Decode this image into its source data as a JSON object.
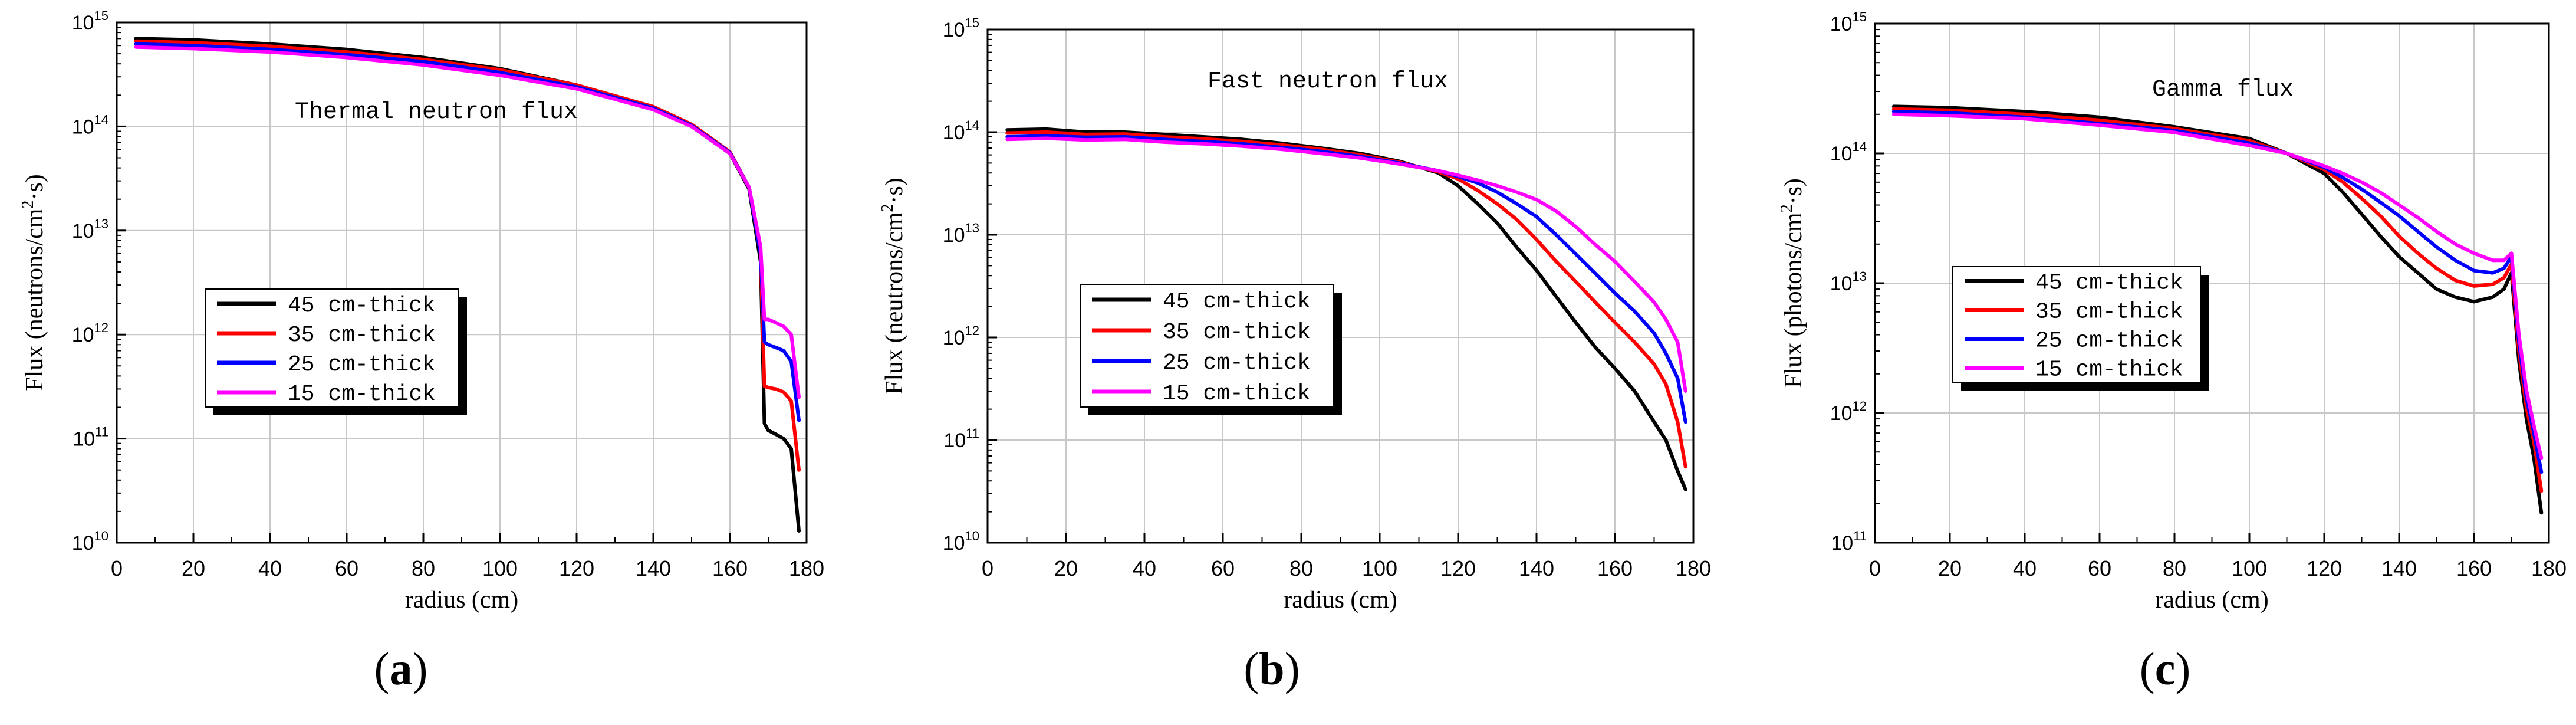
{
  "chart_data": [
    {
      "type": "line",
      "panel_label": "a",
      "title": "Thermal neutron flux",
      "xlabel": "radius (cm)",
      "ylabel_prefix": "Flux (neutrons/cm",
      "ylabel_sup": "2",
      "ylabel_suffix": "·s)",
      "xlim": [
        0,
        180
      ],
      "ylim_exp": [
        10,
        15
      ],
      "xticks": [
        0,
        20,
        40,
        60,
        80,
        100,
        120,
        140,
        160,
        180
      ],
      "ytick_exps": [
        10,
        11,
        12,
        13,
        14,
        15
      ],
      "legend": [
        "45 cm-thick",
        "35 cm-thick",
        "25 cm-thick",
        "15 cm-thick"
      ],
      "series": [
        {
          "name": "45 cm-thick",
          "color": "#000000",
          "x": [
            5,
            20,
            40,
            60,
            80,
            100,
            120,
            140,
            150,
            160,
            165,
            168,
            169,
            170,
            172,
            174,
            176,
            178
          ],
          "y": [
            700000000000000.0,
            680000000000000.0,
            620000000000000.0,
            550000000000000.0,
            460000000000000.0,
            360000000000000.0,
            250000000000000.0,
            150000000000000.0,
            100000000000000.0,
            55000000000000.0,
            25000000000000.0,
            5000000000000.0,
            140000000000.0,
            120000000000.0,
            110000000000.0,
            100000000000.0,
            80000000000.0,
            13000000000.0
          ]
        },
        {
          "name": "35 cm-thick",
          "color": "#ff0000",
          "x": [
            5,
            20,
            40,
            60,
            80,
            100,
            120,
            140,
            150,
            160,
            165,
            168,
            169,
            170,
            172,
            174,
            176,
            178
          ],
          "y": [
            660000000000000.0,
            640000000000000.0,
            590000000000000.0,
            520000000000000.0,
            440000000000000.0,
            350000000000000.0,
            250000000000000.0,
            155000000000000.0,
            105000000000000.0,
            57000000000000.0,
            26000000000000.0,
            6000000000000.0,
            320000000000.0,
            310000000000.0,
            300000000000.0,
            280000000000.0,
            230000000000.0,
            50000000000.0
          ]
        },
        {
          "name": "25 cm-thick",
          "color": "#0000ff",
          "x": [
            5,
            20,
            40,
            60,
            80,
            100,
            120,
            140,
            150,
            160,
            165,
            168,
            169,
            170,
            172,
            174,
            176,
            178
          ],
          "y": [
            620000000000000.0,
            600000000000000.0,
            550000000000000.0,
            490000000000000.0,
            420000000000000.0,
            330000000000000.0,
            240000000000000.0,
            150000000000000.0,
            102000000000000.0,
            56000000000000.0,
            26000000000000.0,
            6000000000000.0,
            850000000000.0,
            800000000000.0,
            750000000000.0,
            700000000000.0,
            550000000000.0,
            150000000000.0
          ]
        },
        {
          "name": "15 cm-thick",
          "color": "#ff00ff",
          "x": [
            5,
            20,
            40,
            60,
            80,
            100,
            120,
            140,
            150,
            160,
            165,
            168,
            169,
            170,
            172,
            174,
            176,
            178
          ],
          "y": [
            580000000000000.0,
            560000000000000.0,
            520000000000000.0,
            460000000000000.0,
            390000000000000.0,
            310000000000000.0,
            230000000000000.0,
            145000000000000.0,
            100000000000000.0,
            55000000000000.0,
            26000000000000.0,
            7000000000000.0,
            1400000000000.0,
            1400000000000.0,
            1300000000000.0,
            1200000000000.0,
            1000000000000.0,
            250000000000.0
          ]
        }
      ]
    },
    {
      "type": "line",
      "panel_label": "b",
      "title": "Fast neutron flux",
      "xlabel": "radius (cm)",
      "ylabel_prefix": "Flux (neutrons/cm",
      "ylabel_sup": "2",
      "ylabel_suffix": "·s)",
      "xlim": [
        0,
        180
      ],
      "ylim_exp": [
        10,
        15
      ],
      "xticks": [
        0,
        20,
        40,
        60,
        80,
        100,
        120,
        140,
        160,
        180
      ],
      "ytick_exps": [
        10,
        11,
        12,
        13,
        14,
        15
      ],
      "legend": [
        "45 cm-thick",
        "35 cm-thick",
        "25 cm-thick",
        "15 cm-thick"
      ],
      "series": [
        {
          "name": "45 cm-thick",
          "color": "#000000",
          "x": [
            5,
            15,
            25,
            35,
            45,
            55,
            65,
            75,
            85,
            95,
            105,
            115,
            120,
            125,
            130,
            135,
            140,
            145,
            150,
            155,
            160,
            165,
            170,
            173,
            176,
            178
          ],
          "y": [
            105000000000000.0,
            107000000000000.0,
            100000000000000.0,
            100000000000000.0,
            95000000000000.0,
            90000000000000.0,
            85000000000000.0,
            78000000000000.0,
            70000000000000.0,
            62000000000000.0,
            52000000000000.0,
            40000000000000.0,
            30000000000000.0,
            20000000000000.0,
            13000000000000.0,
            7500000000000.0,
            4500000000000.0,
            2500000000000.0,
            1400000000000.0,
            800000000000.0,
            500000000000.0,
            300000000000.0,
            150000000000.0,
            100000000000.0,
            50000000000.0,
            33000000000.0
          ]
        },
        {
          "name": "35 cm-thick",
          "color": "#ff0000",
          "x": [
            5,
            15,
            25,
            35,
            45,
            55,
            65,
            75,
            85,
            95,
            105,
            115,
            120,
            125,
            130,
            135,
            140,
            145,
            150,
            155,
            160,
            165,
            170,
            173,
            176,
            178
          ],
          "y": [
            98000000000000.0,
            100000000000000.0,
            95000000000000.0,
            96000000000000.0,
            90000000000000.0,
            86000000000000.0,
            81000000000000.0,
            75000000000000.0,
            68000000000000.0,
            60000000000000.0,
            51000000000000.0,
            41000000000000.0,
            35000000000000.0,
            27000000000000.0,
            20000000000000.0,
            14000000000000.0,
            9000000000000.0,
            5500000000000.0,
            3500000000000.0,
            2200000000000.0,
            1400000000000.0,
            900000000000.0,
            550000000000.0,
            350000000000.0,
            150000000000.0,
            55000000000.0
          ]
        },
        {
          "name": "25 cm-thick",
          "color": "#0000ff",
          "x": [
            5,
            15,
            25,
            35,
            45,
            55,
            65,
            75,
            85,
            95,
            105,
            115,
            120,
            125,
            130,
            135,
            140,
            145,
            150,
            155,
            160,
            165,
            170,
            173,
            176,
            178
          ],
          "y": [
            90000000000000.0,
            92000000000000.0,
            89000000000000.0,
            90000000000000.0,
            85000000000000.0,
            81000000000000.0,
            77000000000000.0,
            71000000000000.0,
            65000000000000.0,
            58000000000000.0,
            50000000000000.0,
            42000000000000.0,
            37000000000000.0,
            32000000000000.0,
            26000000000000.0,
            20000000000000.0,
            15000000000000.0,
            10000000000000.0,
            6500000000000.0,
            4200000000000.0,
            2700000000000.0,
            1800000000000.0,
            1100000000000.0,
            700000000000.0,
            400000000000.0,
            150000000000.0
          ]
        },
        {
          "name": "15 cm-thick",
          "color": "#ff00ff",
          "x": [
            5,
            15,
            25,
            35,
            45,
            55,
            65,
            75,
            85,
            95,
            105,
            115,
            120,
            125,
            130,
            135,
            140,
            145,
            150,
            155,
            160,
            165,
            170,
            173,
            176,
            178
          ],
          "y": [
            85000000000000.0,
            87000000000000.0,
            84000000000000.0,
            85000000000000.0,
            80000000000000.0,
            77000000000000.0,
            73000000000000.0,
            68000000000000.0,
            62000000000000.0,
            56000000000000.0,
            49000000000000.0,
            42000000000000.0,
            38000000000000.0,
            34000000000000.0,
            30000000000000.0,
            26000000000000.0,
            22000000000000.0,
            17000000000000.0,
            12000000000000.0,
            8000000000000.0,
            5500000000000.0,
            3500000000000.0,
            2200000000000.0,
            1500000000000.0,
            900000000000.0,
            300000000000.0
          ]
        }
      ]
    },
    {
      "type": "line",
      "panel_label": "c",
      "title": "Gamma flux",
      "xlabel": "radius (cm)",
      "ylabel_prefix": "Flux (photons/cm",
      "ylabel_sup": "2",
      "ylabel_suffix": "·s)",
      "xlim": [
        0,
        180
      ],
      "ylim_exp": [
        11,
        15
      ],
      "xticks": [
        0,
        20,
        40,
        60,
        80,
        100,
        120,
        140,
        160,
        180
      ],
      "ytick_exps": [
        11,
        12,
        13,
        14,
        15
      ],
      "legend": [
        "45 cm-thick",
        "35 cm-thick",
        "25 cm-thick",
        "15 cm-thick"
      ],
      "series": [
        {
          "name": "45 cm-thick",
          "color": "#000000",
          "x": [
            5,
            20,
            40,
            60,
            80,
            100,
            110,
            120,
            125,
            130,
            135,
            140,
            145,
            150,
            155,
            160,
            165,
            168,
            170,
            172,
            174,
            176,
            178
          ],
          "y": [
            230000000000000.0,
            225000000000000.0,
            210000000000000.0,
            190000000000000.0,
            160000000000000.0,
            130000000000000.0,
            100000000000000.0,
            70000000000000.0,
            50000000000000.0,
            34000000000000.0,
            23000000000000.0,
            16000000000000.0,
            12000000000000.0,
            9000000000000.0,
            7800000000000.0,
            7200000000000.0,
            7800000000000.0,
            9000000000000.0,
            12000000000000.0,
            2500000000000.0,
            900000000000.0,
            450000000000.0,
            170000000000.0
          ]
        },
        {
          "name": "35 cm-thick",
          "color": "#ff0000",
          "x": [
            5,
            20,
            40,
            60,
            80,
            100,
            110,
            120,
            125,
            130,
            135,
            140,
            145,
            150,
            155,
            160,
            165,
            168,
            170,
            172,
            174,
            176,
            178
          ],
          "y": [
            220000000000000.0,
            215000000000000.0,
            200000000000000.0,
            180000000000000.0,
            155000000000000.0,
            125000000000000.0,
            100000000000000.0,
            75000000000000.0,
            60000000000000.0,
            45000000000000.0,
            33000000000000.0,
            23000000000000.0,
            17000000000000.0,
            13000000000000.0,
            10500000000000.0,
            9500000000000.0,
            9800000000000.0,
            11000000000000.0,
            14000000000000.0,
            3000000000000.0,
            1100000000000.0,
            600000000000.0,
            250000000000.0
          ]
        },
        {
          "name": "25 cm-thick",
          "color": "#0000ff",
          "x": [
            5,
            20,
            40,
            60,
            80,
            100,
            110,
            120,
            125,
            130,
            135,
            140,
            145,
            150,
            155,
            160,
            165,
            168,
            170,
            172,
            174,
            176,
            178
          ],
          "y": [
            210000000000000.0,
            205000000000000.0,
            190000000000000.0,
            170000000000000.0,
            150000000000000.0,
            120000000000000.0,
            100000000000000.0,
            78000000000000.0,
            65000000000000.0,
            53000000000000.0,
            42000000000000.0,
            33000000000000.0,
            25000000000000.0,
            19000000000000.0,
            15000000000000.0,
            12500000000000.0,
            12000000000000.0,
            13000000000000.0,
            16000000000000.0,
            3500000000000.0,
            1300000000000.0,
            700000000000.0,
            350000000000.0
          ]
        },
        {
          "name": "15 cm-thick",
          "color": "#ff00ff",
          "x": [
            5,
            20,
            40,
            60,
            80,
            100,
            110,
            120,
            125,
            130,
            135,
            140,
            145,
            150,
            155,
            160,
            165,
            168,
            170,
            172,
            174,
            176,
            178
          ],
          "y": [
            200000000000000.0,
            195000000000000.0,
            185000000000000.0,
            165000000000000.0,
            145000000000000.0,
            115000000000000.0,
            100000000000000.0,
            80000000000000.0,
            70000000000000.0,
            60000000000000.0,
            50000000000000.0,
            40000000000000.0,
            32000000000000.0,
            25000000000000.0,
            20000000000000.0,
            17000000000000.0,
            15000000000000.0,
            15000000000000.0,
            17000000000000.0,
            4000000000000.0,
            1500000000000.0,
            800000000000.0,
            450000000000.0
          ]
        }
      ]
    }
  ]
}
